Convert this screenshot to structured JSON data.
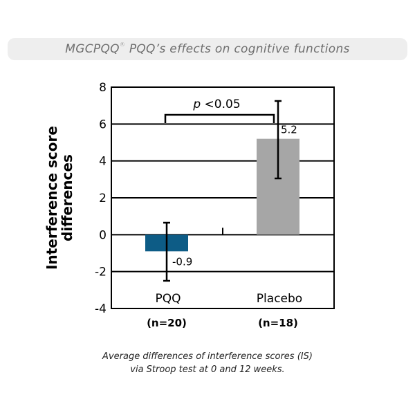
{
  "header": {
    "title_prefix": "MGCPQQ",
    "title_mark": "®",
    "title_suffix": " PQQ’s effects on cognitive functions"
  },
  "caption": {
    "line1": "Average differences of interference scores (IS)",
    "line2": "via Stroop test at 0 and 12 weeks."
  },
  "colors": {
    "pqq_bar": "#0d5c86",
    "placebo_bar": "#a6a6a6",
    "axis": "#000000",
    "banner_bg": "#eeeeee"
  },
  "chart_data": {
    "type": "bar",
    "title": "MGCPQQ® PQQ’s effects on cognitive functions",
    "ylabel_lines": [
      "Interference score",
      "differences"
    ],
    "xlabel": "",
    "ylim": [
      -4,
      8
    ],
    "yticks": [
      -4,
      -2,
      0,
      2,
      4,
      6,
      8
    ],
    "grid": true,
    "categories": [
      "PQQ",
      "Placebo"
    ],
    "sample_sizes": [
      "(n=20)",
      "(n=18)"
    ],
    "values": [
      -0.9,
      5.2
    ],
    "value_labels": [
      "-0.9",
      "5.2"
    ],
    "error_bars": [
      {
        "low": -2.5,
        "high": 0.65
      },
      {
        "low": 3.05,
        "high": 7.25
      }
    ],
    "significance": {
      "label_italic": "p",
      "label_rest": " <0.05",
      "bracket_y": 6.5
    }
  }
}
